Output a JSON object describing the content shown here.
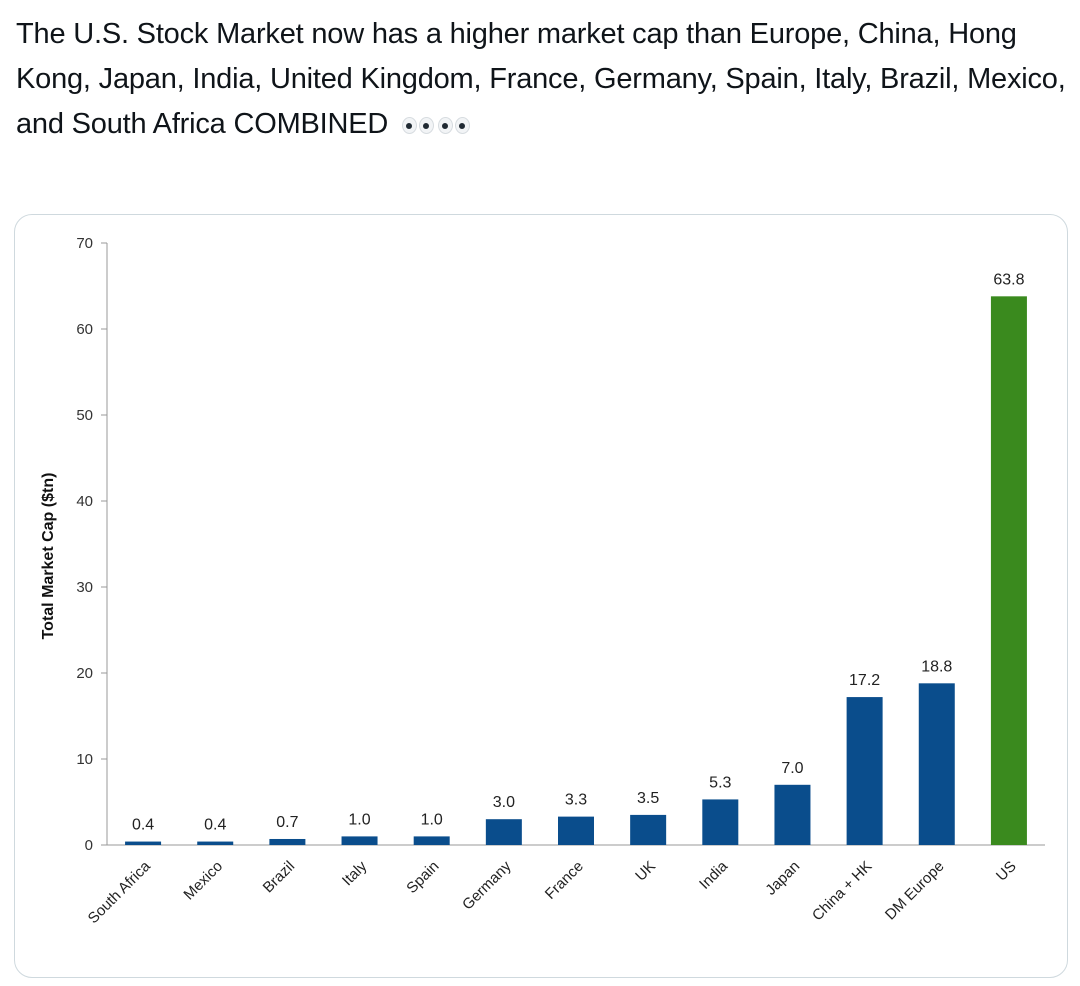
{
  "post": {
    "text": "The U.S. Stock Market now has a higher market cap than Europe, China, Hong Kong, Japan, India, United Kingdom, France, Germany, Spain, Italy, Brazil, Mexico, and South Africa COMBINED",
    "emoji": "eyes-emoji x2"
  },
  "colors": {
    "bar_default": "#0a4d8c",
    "bar_highlight": "#3a8a1e",
    "axis": "#999999"
  },
  "chart_data": {
    "type": "bar",
    "title": "",
    "xlabel": "",
    "ylabel": "Total Market Cap ($tn)",
    "ylim": [
      0,
      70
    ],
    "yticks": [
      0,
      10,
      20,
      30,
      40,
      50,
      60,
      70
    ],
    "grid": false,
    "categories": [
      "South Africa",
      "Mexico",
      "Brazil",
      "Italy",
      "Spain",
      "Germany",
      "France",
      "UK",
      "India",
      "Japan",
      "China + HK",
      "DM Europe",
      "US"
    ],
    "values": [
      0.4,
      0.4,
      0.7,
      1.0,
      1.0,
      3.0,
      3.3,
      3.5,
      5.3,
      7.0,
      17.2,
      18.8,
      63.8
    ],
    "data_labels": [
      "0.4",
      "0.4",
      "0.7",
      "1.0",
      "1.0",
      "3.0",
      "3.3",
      "3.5",
      "5.3",
      "7.0",
      "17.2",
      "18.8",
      "63.8"
    ],
    "highlight_category": "US"
  }
}
